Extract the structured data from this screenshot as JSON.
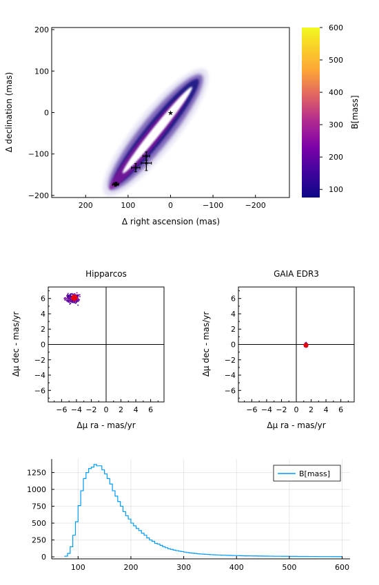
{
  "chart_data": [
    {
      "type": "scatter",
      "xlabel": "Δ right ascension (mas)",
      "ylabel": "Δ declination (mas)",
      "xlim": [
        280,
        -280
      ],
      "ylim": [
        -205,
        205
      ],
      "xticks": [
        200,
        100,
        0,
        -100,
        -200
      ],
      "xtick_labels": [
        "200",
        "100",
        "0",
        "−100",
        "−200"
      ],
      "yticks": [
        -200,
        -100,
        0,
        100,
        200
      ],
      "ytick_labels": [
        "−200",
        "−100",
        "0",
        "100",
        "200"
      ],
      "star": [
        0,
        0
      ],
      "orbit_band": {
        "start": [
          135,
          -175
        ],
        "end": [
          -65,
          80
        ]
      },
      "astrometry_points": [
        {
          "x": 130,
          "y": -174,
          "xerr": 7,
          "yerr": 4
        },
        {
          "x": 128,
          "y": -172,
          "xerr": 6,
          "yerr": 4
        },
        {
          "x": 82,
          "y": -133,
          "xerr": 10,
          "yerr": 10
        },
        {
          "x": 57,
          "y": -122,
          "xerr": 12,
          "yerr": 18
        },
        {
          "x": 57,
          "y": -105,
          "xerr": 8,
          "yerr": 10
        }
      ],
      "colorbar": {
        "label": "B[mass]",
        "range": [
          75,
          600
        ],
        "ticks": [
          100,
          200,
          300,
          400,
          500,
          600
        ],
        "tick_labels": [
          "100",
          "200",
          "300",
          "400",
          "500",
          "600"
        ]
      },
      "grid": false
    },
    {
      "type": "scatter",
      "title": "Hipparcos",
      "xlabel": "Δμ ra - mas/yr",
      "ylabel": "Δμ dec - mas/yr",
      "xlim": [
        -7.8,
        7.8
      ],
      "ylim": [
        -7.5,
        7.5
      ],
      "xticks": [
        -6,
        -4,
        -2,
        0,
        2,
        4,
        6
      ],
      "xtick_labels": [
        "−6",
        "−4",
        "−2",
        "0",
        "2",
        "4",
        "6"
      ],
      "yticks": [
        -6,
        -4,
        -2,
        0,
        2,
        4,
        6
      ],
      "ytick_labels": [
        "−6",
        "−4",
        "−2",
        "0",
        "2",
        "4",
        "6"
      ],
      "cloud_center": [
        -4.5,
        6.0
      ],
      "cloud_spread": [
        0.7,
        0.45
      ],
      "marker": [
        -4.3,
        6.1
      ]
    },
    {
      "type": "scatter",
      "title": "GAIA EDR3",
      "xlabel": "Δμ ra - mas/yr",
      "ylabel": "Δμ dec - mas/yr",
      "xlim": [
        -7.8,
        7.8
      ],
      "ylim": [
        -7.5,
        7.5
      ],
      "xticks": [
        -6,
        -4,
        -2,
        0,
        2,
        4,
        6
      ],
      "xtick_labels": [
        "−6",
        "−4",
        "−2",
        "0",
        "2",
        "4",
        "6"
      ],
      "yticks": [
        -6,
        -4,
        -2,
        0,
        2,
        4,
        6
      ],
      "ytick_labels": [
        "−6",
        "−4",
        "−2",
        "0",
        "2",
        "4",
        "6"
      ],
      "cloud_center": [
        1.3,
        -0.1
      ],
      "cloud_spread": [
        0.18,
        0.22
      ],
      "marker": [
        1.3,
        -0.1
      ]
    },
    {
      "type": "bar",
      "xlim": [
        50,
        615
      ],
      "ylim": [
        -30,
        1450
      ],
      "xticks": [
        100,
        200,
        300,
        400,
        500,
        600
      ],
      "xtick_labels": [
        "100",
        "200",
        "300",
        "400",
        "500",
        "600"
      ],
      "yticks": [
        0,
        250,
        500,
        750,
        1000,
        1250
      ],
      "ytick_labels": [
        "0",
        "250",
        "500",
        "750",
        "1000",
        "1250"
      ],
      "grid": true,
      "legend_position": "top-right",
      "series": [
        {
          "name": "B[mass]",
          "color": "#009AFA"
        }
      ],
      "bin_width": 5,
      "bins_x": [
        75,
        80,
        85,
        90,
        95,
        100,
        105,
        110,
        115,
        120,
        125,
        130,
        135,
        140,
        145,
        150,
        155,
        160,
        165,
        170,
        175,
        180,
        185,
        190,
        195,
        200,
        205,
        210,
        215,
        220,
        225,
        230,
        235,
        240,
        245,
        250,
        255,
        260,
        265,
        270,
        275,
        280,
        285,
        290,
        295,
        300,
        305,
        310,
        315,
        320,
        325,
        330,
        335,
        340,
        345,
        350,
        355,
        360,
        365,
        370,
        375,
        380,
        385,
        390,
        395,
        400,
        405,
        410,
        415,
        420,
        425,
        430,
        435,
        440,
        445,
        450,
        455,
        460,
        465,
        470,
        475,
        480,
        485,
        490,
        495,
        500,
        505,
        510,
        515,
        520,
        525,
        530,
        535,
        540,
        545,
        550,
        555,
        560,
        565,
        570,
        575,
        580,
        585,
        590,
        595
      ],
      "bins_count": [
        10,
        50,
        150,
        320,
        520,
        760,
        980,
        1160,
        1250,
        1310,
        1330,
        1370,
        1350,
        1350,
        1290,
        1230,
        1160,
        1080,
        980,
        900,
        820,
        750,
        670,
        610,
        560,
        500,
        460,
        420,
        390,
        350,
        320,
        280,
        250,
        230,
        200,
        190,
        170,
        150,
        135,
        120,
        110,
        100,
        92,
        84,
        78,
        70,
        64,
        58,
        54,
        50,
        45,
        42,
        40,
        37,
        35,
        32,
        30,
        28,
        27,
        25,
        24,
        22,
        21,
        20,
        19,
        18,
        17,
        16,
        15,
        15,
        14,
        13,
        13,
        12,
        12,
        11,
        11,
        10,
        10,
        9,
        9,
        9,
        8,
        8,
        8,
        7,
        7,
        7,
        6,
        6,
        6,
        6,
        5,
        5,
        5,
        5,
        4,
        4,
        4,
        4,
        4,
        3,
        3,
        3,
        3
      ]
    }
  ]
}
